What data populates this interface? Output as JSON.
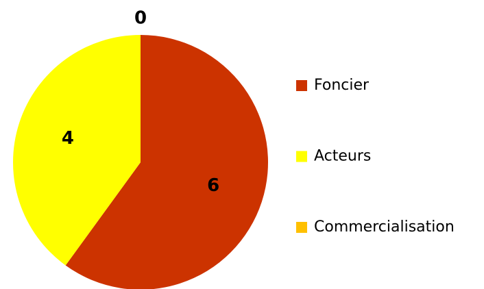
{
  "chart_data": {
    "type": "pie",
    "categories": [
      "Foncier",
      "Acteurs",
      "Commercialisation"
    ],
    "values": [
      6,
      4,
      0
    ],
    "colors": [
      "#cc3300",
      "#ffff00",
      "#ffc000"
    ],
    "legend": "right"
  }
}
